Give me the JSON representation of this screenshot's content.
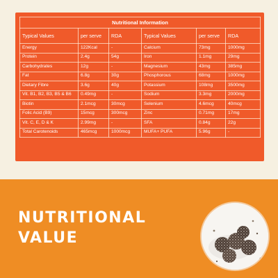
{
  "table": {
    "title": "Nutritional Information",
    "headers": [
      "Typical Values",
      "per serve",
      "RDA",
      "Typical Values",
      "per serve",
      "RDA"
    ],
    "rows": [
      [
        "Energy",
        "122Kcal",
        "-",
        "Calcium",
        "73mg",
        "1000mg"
      ],
      [
        "Protein",
        "2.4g",
        "54g",
        "Iron",
        "1.1mg",
        "29mg"
      ],
      [
        "Carbohydrates",
        "12g",
        "-",
        "Magnesium",
        "43mg",
        "385mg"
      ],
      [
        "Fat",
        "6.8g",
        "30g",
        "Phosphorous",
        "68mg",
        "1000mg"
      ],
      [
        "Dietary Fibre",
        "3.6g",
        "40g",
        "Potassium",
        "108mg",
        "3500mg"
      ],
      [
        "Vit. B1, B2, B3, B5 & B6",
        "0.49mg",
        "-",
        "Sodium",
        "3.3mg",
        "2000mg"
      ],
      [
        "Biotin",
        "2.1mcg",
        "30mcg",
        "Selenium",
        "4.6mcg",
        "40mcg"
      ],
      [
        "Folic Acid (B9)",
        "15mcg",
        "300mcg",
        "Zinc",
        "0.71mg",
        "17mg"
      ],
      [
        "Vit. C, E, D & K",
        "2.99mg",
        "-",
        "SFA",
        "0.84g",
        "22g"
      ],
      [
        "Total Carotenoids",
        "465mcg",
        "1000mcg",
        "MUFA+ PUFA",
        "5.96g",
        "-"
      ]
    ]
  },
  "headline": {
    "line1": "Nutritional",
    "line2": "Value"
  },
  "colors": {
    "cream": "#f6f0e1",
    "panel_orange": "#f05a2a",
    "banner_orange": "#ef8d24"
  },
  "photo": {
    "icon": "energy-balls-photo"
  }
}
